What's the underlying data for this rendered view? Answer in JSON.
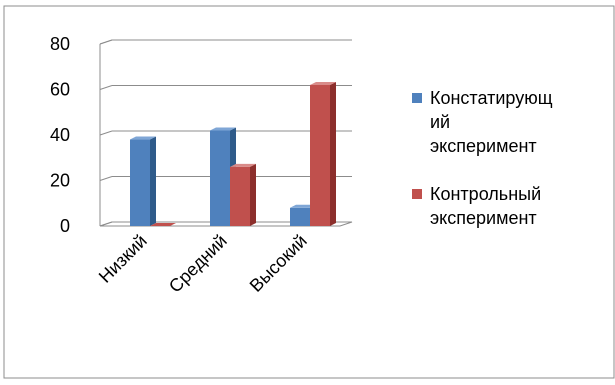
{
  "chart_data": {
    "type": "bar",
    "categories": [
      "Низкий",
      "Средний",
      "Высокий"
    ],
    "series": [
      {
        "name": "Констатирующ ий эксперимент",
        "values": [
          38,
          42,
          8
        ]
      },
      {
        "name": "Контрольный эксперимент",
        "values": [
          0,
          26,
          62
        ]
      }
    ],
    "y_ticks": [
      "0",
      "20",
      "40",
      "60",
      "80"
    ],
    "ylim": [
      0,
      80
    ],
    "grid": true,
    "legend_position": "right",
    "legend_lines": [
      [
        "Констатирующ",
        "ий",
        "эксперимент"
      ],
      [
        "Контрольный",
        "эксперимент"
      ]
    ],
    "colors": {
      "series": [
        "#4f81bd",
        "#c0504d"
      ],
      "series_side": [
        "#2f5b8a",
        "#8c2f2c"
      ],
      "series_top": [
        "#7fa6d6",
        "#d98b89"
      ],
      "grid": "#8c8c8c",
      "border": "#8c8c8c",
      "text": "#000000"
    }
  }
}
